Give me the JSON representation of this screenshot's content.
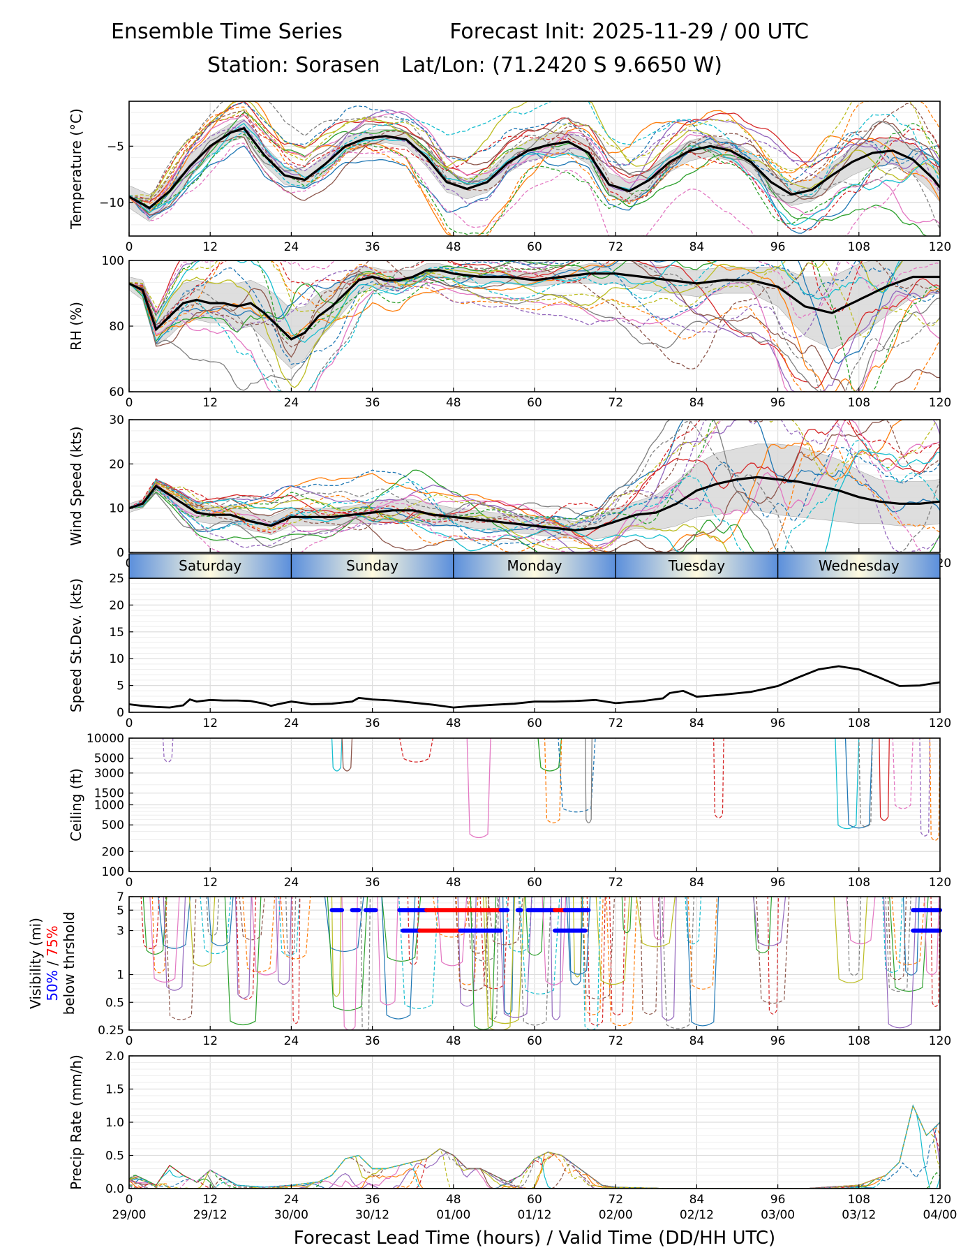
{
  "header": {
    "title_left": "Ensemble Time Series",
    "title_right": "Forecast Init: 2025-11-29 / 00 UTC",
    "station": "Station: Sorasen",
    "latlon": "Lat/Lon: (71.2420 S 9.6650 W)"
  },
  "colors": {
    "members": [
      "#1f77b4",
      "#ff7f0e",
      "#2ca02c",
      "#d62728",
      "#9467bd",
      "#8c564b",
      "#e377c2",
      "#7f7f7f",
      "#bcbd22",
      "#17becf"
    ],
    "mean": "#000000",
    "spread": "#d9d9d9",
    "grid": "#dddddd",
    "vis50": "#0000ff",
    "vis75": "#ff0000",
    "day_band_light": "#fffbe0",
    "day_band_dark": "#5b8fdc"
  },
  "chart_data": [
    {
      "type": "line",
      "name": "temperature",
      "ylabel": "Temperature (°C)",
      "xlim": [
        0,
        120
      ],
      "ylim": [
        -13,
        -1
      ],
      "yticks": [
        -10,
        -5
      ],
      "ytick_labels": [
        "−10",
        "−5"
      ],
      "xticks": [
        0,
        12,
        24,
        36,
        48,
        60,
        72,
        84,
        96,
        108,
        120
      ],
      "x": [
        0,
        3,
        6,
        9,
        12,
        15,
        17,
        20,
        23,
        26,
        29,
        32,
        35,
        38,
        41,
        44,
        47,
        50,
        53,
        56,
        59,
        62,
        65,
        68,
        71,
        74,
        77,
        80,
        83,
        86,
        89,
        92,
        95,
        98,
        101,
        104,
        107,
        110,
        113,
        116,
        119,
        120
      ],
      "mean": [
        -9.5,
        -10.5,
        -9.0,
        -6.8,
        -5.0,
        -3.8,
        -3.4,
        -5.8,
        -7.6,
        -8.0,
        -6.6,
        -5.0,
        -4.3,
        -4.1,
        -4.4,
        -6.0,
        -8.2,
        -8.8,
        -8.2,
        -6.5,
        -5.4,
        -4.9,
        -4.6,
        -5.6,
        -8.4,
        -9.0,
        -8.0,
        -6.4,
        -5.4,
        -5.0,
        -5.4,
        -6.4,
        -8.2,
        -9.3,
        -8.9,
        -7.6,
        -6.4,
        -5.6,
        -5.4,
        -6.2,
        -7.9,
        -8.7
      ],
      "spread": [
        1.0,
        1.2,
        1.1,
        1.0,
        0.9,
        0.8,
        0.8,
        0.9,
        0.8,
        0.8,
        0.8,
        0.7,
        0.7,
        0.6,
        0.6,
        0.8,
        0.9,
        0.9,
        0.9,
        0.9,
        0.9,
        1.0,
        1.0,
        1.0,
        1.0,
        1.0,
        1.0,
        0.9,
        0.9,
        0.9,
        0.9,
        0.9,
        1.0,
        1.0,
        1.0,
        1.1,
        1.2,
        1.2,
        1.2,
        1.3,
        1.3,
        1.3
      ]
    },
    {
      "type": "line",
      "name": "relative-humidity",
      "ylabel": "RH (%)",
      "xlim": [
        0,
        120
      ],
      "ylim": [
        60,
        100
      ],
      "yticks": [
        60,
        80,
        100
      ],
      "ytick_labels": [
        "60",
        "80",
        "100"
      ],
      "xticks": [
        0,
        12,
        24,
        36,
        48,
        60,
        72,
        84,
        96,
        108,
        120
      ],
      "x": [
        0,
        2,
        4,
        6,
        8,
        10,
        12,
        14,
        16,
        18,
        20,
        22,
        24,
        26,
        28,
        30,
        32,
        34,
        36,
        38,
        40,
        42,
        44,
        46,
        48,
        52,
        56,
        60,
        64,
        68,
        72,
        76,
        80,
        84,
        88,
        92,
        96,
        100,
        104,
        108,
        112,
        116,
        120
      ],
      "mean": [
        93,
        91,
        79,
        83,
        87,
        88,
        87,
        87,
        86,
        87,
        84,
        80,
        76,
        78,
        83,
        86,
        90,
        94,
        95,
        94,
        94,
        95,
        97,
        97,
        96,
        95,
        95,
        94,
        95,
        96,
        96,
        95,
        94,
        93,
        94,
        94,
        92,
        86,
        84,
        88,
        92,
        95,
        95
      ],
      "spread": [
        2,
        3,
        5,
        6,
        6,
        6,
        6,
        6,
        7,
        7,
        8,
        9,
        9,
        8,
        7,
        6,
        5,
        4,
        3,
        3,
        3,
        2,
        2,
        2,
        2,
        2,
        2,
        2,
        2,
        3,
        3,
        4,
        4,
        4,
        4,
        4,
        6,
        9,
        11,
        11,
        9,
        6,
        5
      ]
    },
    {
      "type": "line",
      "name": "wind-speed",
      "ylabel": "Wind Speed (kts)",
      "xlim": [
        0,
        120
      ],
      "ylim": [
        0,
        30
      ],
      "yticks": [
        0,
        10,
        20,
        30
      ],
      "ytick_labels": [
        "0",
        "10",
        "20",
        "30"
      ],
      "xticks": [
        0,
        12,
        24,
        36,
        48,
        60,
        72,
        84,
        96,
        108,
        120
      ],
      "x": [
        0,
        2,
        4,
        6,
        8,
        10,
        12,
        15,
        18,
        21,
        24,
        27,
        30,
        33,
        36,
        39,
        42,
        45,
        48,
        51,
        54,
        57,
        60,
        63,
        66,
        69,
        72,
        75,
        78,
        81,
        84,
        87,
        90,
        93,
        96,
        99,
        102,
        105,
        108,
        111,
        114,
        117,
        120
      ],
      "mean": [
        10,
        11,
        15,
        13,
        11,
        9,
        8.5,
        8.5,
        7,
        6,
        8,
        8,
        8,
        8.5,
        9,
        9.5,
        9.5,
        8.5,
        8,
        7.5,
        7,
        6.5,
        6,
        5.5,
        5,
        5.5,
        7,
        8.5,
        9,
        11,
        14,
        15.5,
        16.5,
        17,
        16.5,
        16,
        15,
        14,
        12.5,
        11.5,
        11,
        11,
        11.5
      ],
      "spread": [
        1,
        1,
        1.5,
        1.5,
        2,
        2,
        2,
        2,
        2,
        2,
        2,
        2,
        2,
        2,
        2.5,
        2.5,
        2.5,
        2.5,
        2,
        2,
        2,
        2,
        2,
        2,
        2,
        2.5,
        3,
        3,
        4,
        5,
        6,
        7,
        7,
        7.5,
        8,
        8,
        7.5,
        7,
        6,
        5,
        5,
        5,
        5
      ]
    },
    {
      "type": "line",
      "name": "speed-stdev",
      "ylabel": "Speed St.Dev. (kts)",
      "xlim": [
        0,
        120
      ],
      "ylim": [
        0,
        25
      ],
      "yticks": [
        0,
        5,
        10,
        15,
        20,
        25
      ],
      "ytick_labels": [
        "0",
        "5",
        "10",
        "15",
        "20",
        "25"
      ],
      "xticks": [
        0,
        12,
        24,
        36,
        48,
        60,
        72,
        84,
        96,
        108,
        120
      ],
      "day_labels": [
        "Saturday",
        "Sunday",
        "Monday",
        "Tuesday",
        "Wednesday"
      ],
      "x": [
        0,
        2,
        4,
        6,
        8,
        9,
        10,
        12,
        14,
        16,
        18,
        20,
        21,
        22,
        24,
        27,
        30,
        33,
        34,
        36,
        39,
        42,
        45,
        48,
        51,
        54,
        57,
        60,
        63,
        66,
        69,
        72,
        76,
        79,
        80,
        82,
        84,
        88,
        92,
        96,
        99,
        102,
        105,
        108,
        111,
        114,
        117,
        120
      ],
      "values": [
        1.5,
        1.2,
        1.0,
        0.9,
        1.3,
        2.4,
        2.0,
        2.3,
        2.2,
        2.2,
        2.1,
        1.6,
        1.2,
        1.5,
        2.0,
        1.5,
        1.6,
        2.0,
        2.7,
        2.4,
        2.2,
        1.8,
        1.4,
        0.9,
        1.2,
        1.4,
        1.6,
        2.0,
        2.0,
        2.1,
        2.3,
        1.7,
        2.1,
        2.6,
        3.6,
        4.0,
        2.9,
        3.3,
        3.8,
        4.9,
        6.5,
        8.0,
        8.6,
        8.0,
        6.5,
        4.9,
        5.0,
        5.6
      ]
    },
    {
      "type": "line",
      "name": "ceiling",
      "ylabel": "Ceiling (ft)",
      "scale": "log",
      "xlim": [
        0,
        120
      ],
      "ylim": [
        100,
        10000
      ],
      "yticks": [
        100,
        200,
        500,
        1000,
        1500,
        3000,
        5000,
        10000
      ],
      "ytick_labels": [
        "100",
        "200",
        "500",
        "1000",
        "1500",
        "3000",
        "5000",
        "10000"
      ],
      "xticks": [
        0,
        12,
        24,
        36,
        48,
        60,
        72,
        84,
        96,
        108,
        120
      ],
      "events": [
        {
          "member": 4,
          "x0": 5,
          "x1": 6.5,
          "min": 4500,
          "dashed": true
        },
        {
          "member": 9,
          "x0": 30,
          "x1": 31.5,
          "min": 3300,
          "dashed": false
        },
        {
          "member": 5,
          "x0": 31.5,
          "x1": 33,
          "min": 3300,
          "dashed": false
        },
        {
          "member": 3,
          "x0": 40,
          "x1": 45,
          "min": 4500,
          "dashed": true
        },
        {
          "member": 6,
          "x0": 50,
          "x1": 53.5,
          "min": 330,
          "dashed": false
        },
        {
          "member": 2,
          "x0": 60.5,
          "x1": 64,
          "min": 3300,
          "dashed": false
        },
        {
          "member": 1,
          "x0": 61.5,
          "x1": 64,
          "min": 550,
          "dashed": true
        },
        {
          "member": 0,
          "x0": 63.5,
          "x1": 69,
          "min": 800,
          "dashed": true
        },
        {
          "member": 7,
          "x0": 67.5,
          "x1": 68.5,
          "min": 550,
          "dashed": false
        },
        {
          "member": 3,
          "x0": 86.5,
          "x1": 88,
          "min": 650,
          "dashed": true
        },
        {
          "member": 9,
          "x0": 104.5,
          "x1": 108,
          "min": 450,
          "dashed": false
        },
        {
          "member": 0,
          "x0": 106,
          "x1": 110,
          "min": 460,
          "dashed": false
        },
        {
          "member": 7,
          "x0": 108,
          "x1": 110,
          "min": 480,
          "dashed": true
        },
        {
          "member": 3,
          "x0": 111,
          "x1": 112.5,
          "min": 600,
          "dashed": false
        },
        {
          "member": 6,
          "x0": 113,
          "x1": 116,
          "min": 900,
          "dashed": true
        },
        {
          "member": 4,
          "x0": 117,
          "x1": 118.5,
          "min": 350,
          "dashed": true
        },
        {
          "member": 1,
          "x0": 118.5,
          "x1": 120,
          "min": 300,
          "dashed": true
        }
      ]
    },
    {
      "type": "line",
      "name": "visibility",
      "ylabel": "Visibility (mi)",
      "ylabel_50": "50%",
      "ylabel_sep": " / ",
      "ylabel_75": "75%",
      "ylabel_3": "below thrshold",
      "scale": "log",
      "xlim": [
        0,
        120
      ],
      "ylim": [
        0.25,
        7
      ],
      "yticks": [
        0.25,
        0.5,
        1,
        3,
        5,
        7
      ],
      "ytick_labels": [
        "0.25",
        "0.5",
        "1",
        "3",
        "5",
        "7"
      ],
      "xticks": [
        0,
        12,
        24,
        36,
        48,
        60,
        72,
        84,
        96,
        108,
        120
      ],
      "threshold_5mi": [
        {
          "x0": 30,
          "x1": 31.5,
          "p": 50
        },
        {
          "x0": 33,
          "x1": 34,
          "p": 50
        },
        {
          "x0": 35,
          "x1": 36.5,
          "p": 50
        },
        {
          "x0": 40,
          "x1": 44,
          "p": 50
        },
        {
          "x0": 44,
          "x1": 55,
          "p": 75
        },
        {
          "x0": 55,
          "x1": 56,
          "p": 50
        },
        {
          "x0": 57.5,
          "x1": 58,
          "p": 50
        },
        {
          "x0": 59,
          "x1": 63,
          "p": 50
        },
        {
          "x0": 63,
          "x1": 64.5,
          "p": 75
        },
        {
          "x0": 64.5,
          "x1": 68,
          "p": 50
        },
        {
          "x0": 116,
          "x1": 120,
          "p": 50
        }
      ],
      "threshold_3mi": [
        {
          "x0": 40.5,
          "x1": 43,
          "p": 50
        },
        {
          "x0": 43,
          "x1": 49,
          "p": 75
        },
        {
          "x0": 49,
          "x1": 55,
          "p": 50
        },
        {
          "x0": 63,
          "x1": 67.5,
          "p": 50
        },
        {
          "x0": 116,
          "x1": 120,
          "p": 50
        }
      ]
    },
    {
      "type": "line",
      "name": "precip-rate",
      "ylabel": "Precip Rate (mm/h)",
      "xlim": [
        0,
        120
      ],
      "ylim": [
        0,
        2.0
      ],
      "yticks": [
        0,
        0.5,
        1.0,
        1.5,
        2.0
      ],
      "ytick_labels": [
        "0.0",
        "0.5",
        "1.0",
        "1.5",
        "2.0"
      ],
      "xticks": [
        0,
        12,
        24,
        36,
        48,
        60,
        72,
        84,
        96,
        108,
        120
      ],
      "xtick_labels": [
        "0",
        "12",
        "24",
        "36",
        "48",
        "60",
        "72",
        "84",
        "96",
        "108",
        "120"
      ],
      "xtick_dates": [
        "29/00",
        "29/12",
        "30/00",
        "30/12",
        "01/00",
        "01/12",
        "02/00",
        "02/12",
        "03/00",
        "03/12",
        "04/00"
      ],
      "xlabel": "Forecast Lead Time (hours) / Valid Time (DD/HH UTC)",
      "x": [
        0,
        2,
        4,
        6,
        8,
        10,
        12,
        16,
        20,
        24,
        28,
        30,
        32,
        34,
        36,
        38,
        40,
        42,
        44,
        46,
        48,
        50,
        52,
        54,
        56,
        58,
        60,
        62,
        64,
        66,
        68,
        70,
        72,
        80,
        90,
        100,
        108,
        112,
        114,
        116,
        118,
        120
      ],
      "peak": [
        0.25,
        0.15,
        0.05,
        0.35,
        0.2,
        0.1,
        0.28,
        0.05,
        0.02,
        0.05,
        0.1,
        0.2,
        0.45,
        0.5,
        0.3,
        0.3,
        0.35,
        0.4,
        0.45,
        0.6,
        0.5,
        0.3,
        0.3,
        0.2,
        0.1,
        0.2,
        0.45,
        0.55,
        0.5,
        0.35,
        0.2,
        0.05,
        0.02,
        0.0,
        0.0,
        0.0,
        0.05,
        0.2,
        0.4,
        1.25,
        0.8,
        1.0
      ]
    }
  ]
}
